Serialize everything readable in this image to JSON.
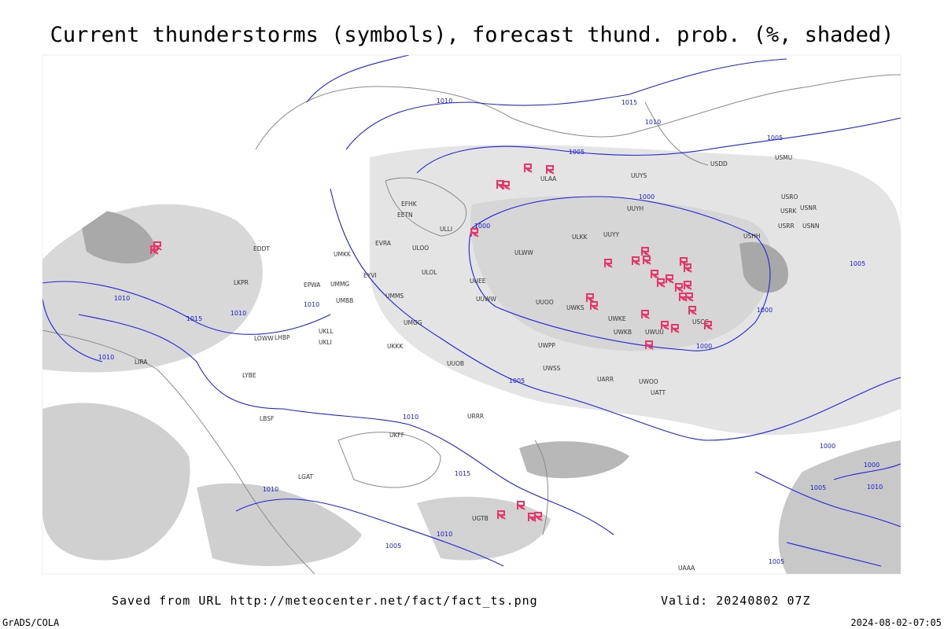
{
  "header": {
    "title": "Current thunderstorms (symbols), forecast thund. prob. (%, shaded)"
  },
  "map": {
    "isobar_labels": [
      "1010",
      "1015",
      "1010",
      "1005",
      "1000",
      "1000",
      "1005",
      "1005",
      "1010",
      "1015",
      "1010",
      "1010",
      "1010",
      "1005",
      "1010",
      "1015",
      "1010",
      "1010",
      "1005",
      "1000",
      "1000",
      "1000",
      "1000",
      "1005",
      "1010",
      "1005"
    ],
    "station_labels": [
      "ULAA",
      "UUYS",
      "USDD",
      "USMU",
      "UUYH",
      "USRO",
      "USRK",
      "USNR",
      "USRR",
      "USNN",
      "UUYY",
      "ULKK",
      "USHH",
      "ULWW",
      "ULOL",
      "UUEE",
      "UUWW",
      "UUOO",
      "UWKS",
      "UWKE",
      "UWKB",
      "UWUU",
      "USCC",
      "UWPP",
      "UUOB",
      "UWSS",
      "UARR",
      "UWOO",
      "UATT",
      "UKKK",
      "UKLL",
      "UKLI",
      "UMMG",
      "UMMS",
      "UMGG",
      "UMBB",
      "ULLI",
      "EFHK",
      "EETN",
      "ULOO",
      "EVRA",
      "UMKK",
      "EYVI",
      "EPWA",
      "EDDT",
      "LKPR",
      "LOWW",
      "LHBP",
      "LIRA",
      "LYBE",
      "LBSF",
      "LGAT",
      "UKFF",
      "URRR",
      "UGTB",
      "UAAA"
    ]
  },
  "footer": {
    "source": "Saved from URL http://meteocenter.net/fact/fact_ts.png",
    "valid": "Valid: 20240802 07Z",
    "software": "GrADS/COLA",
    "timestamp": "2024-08-02-07:05"
  }
}
